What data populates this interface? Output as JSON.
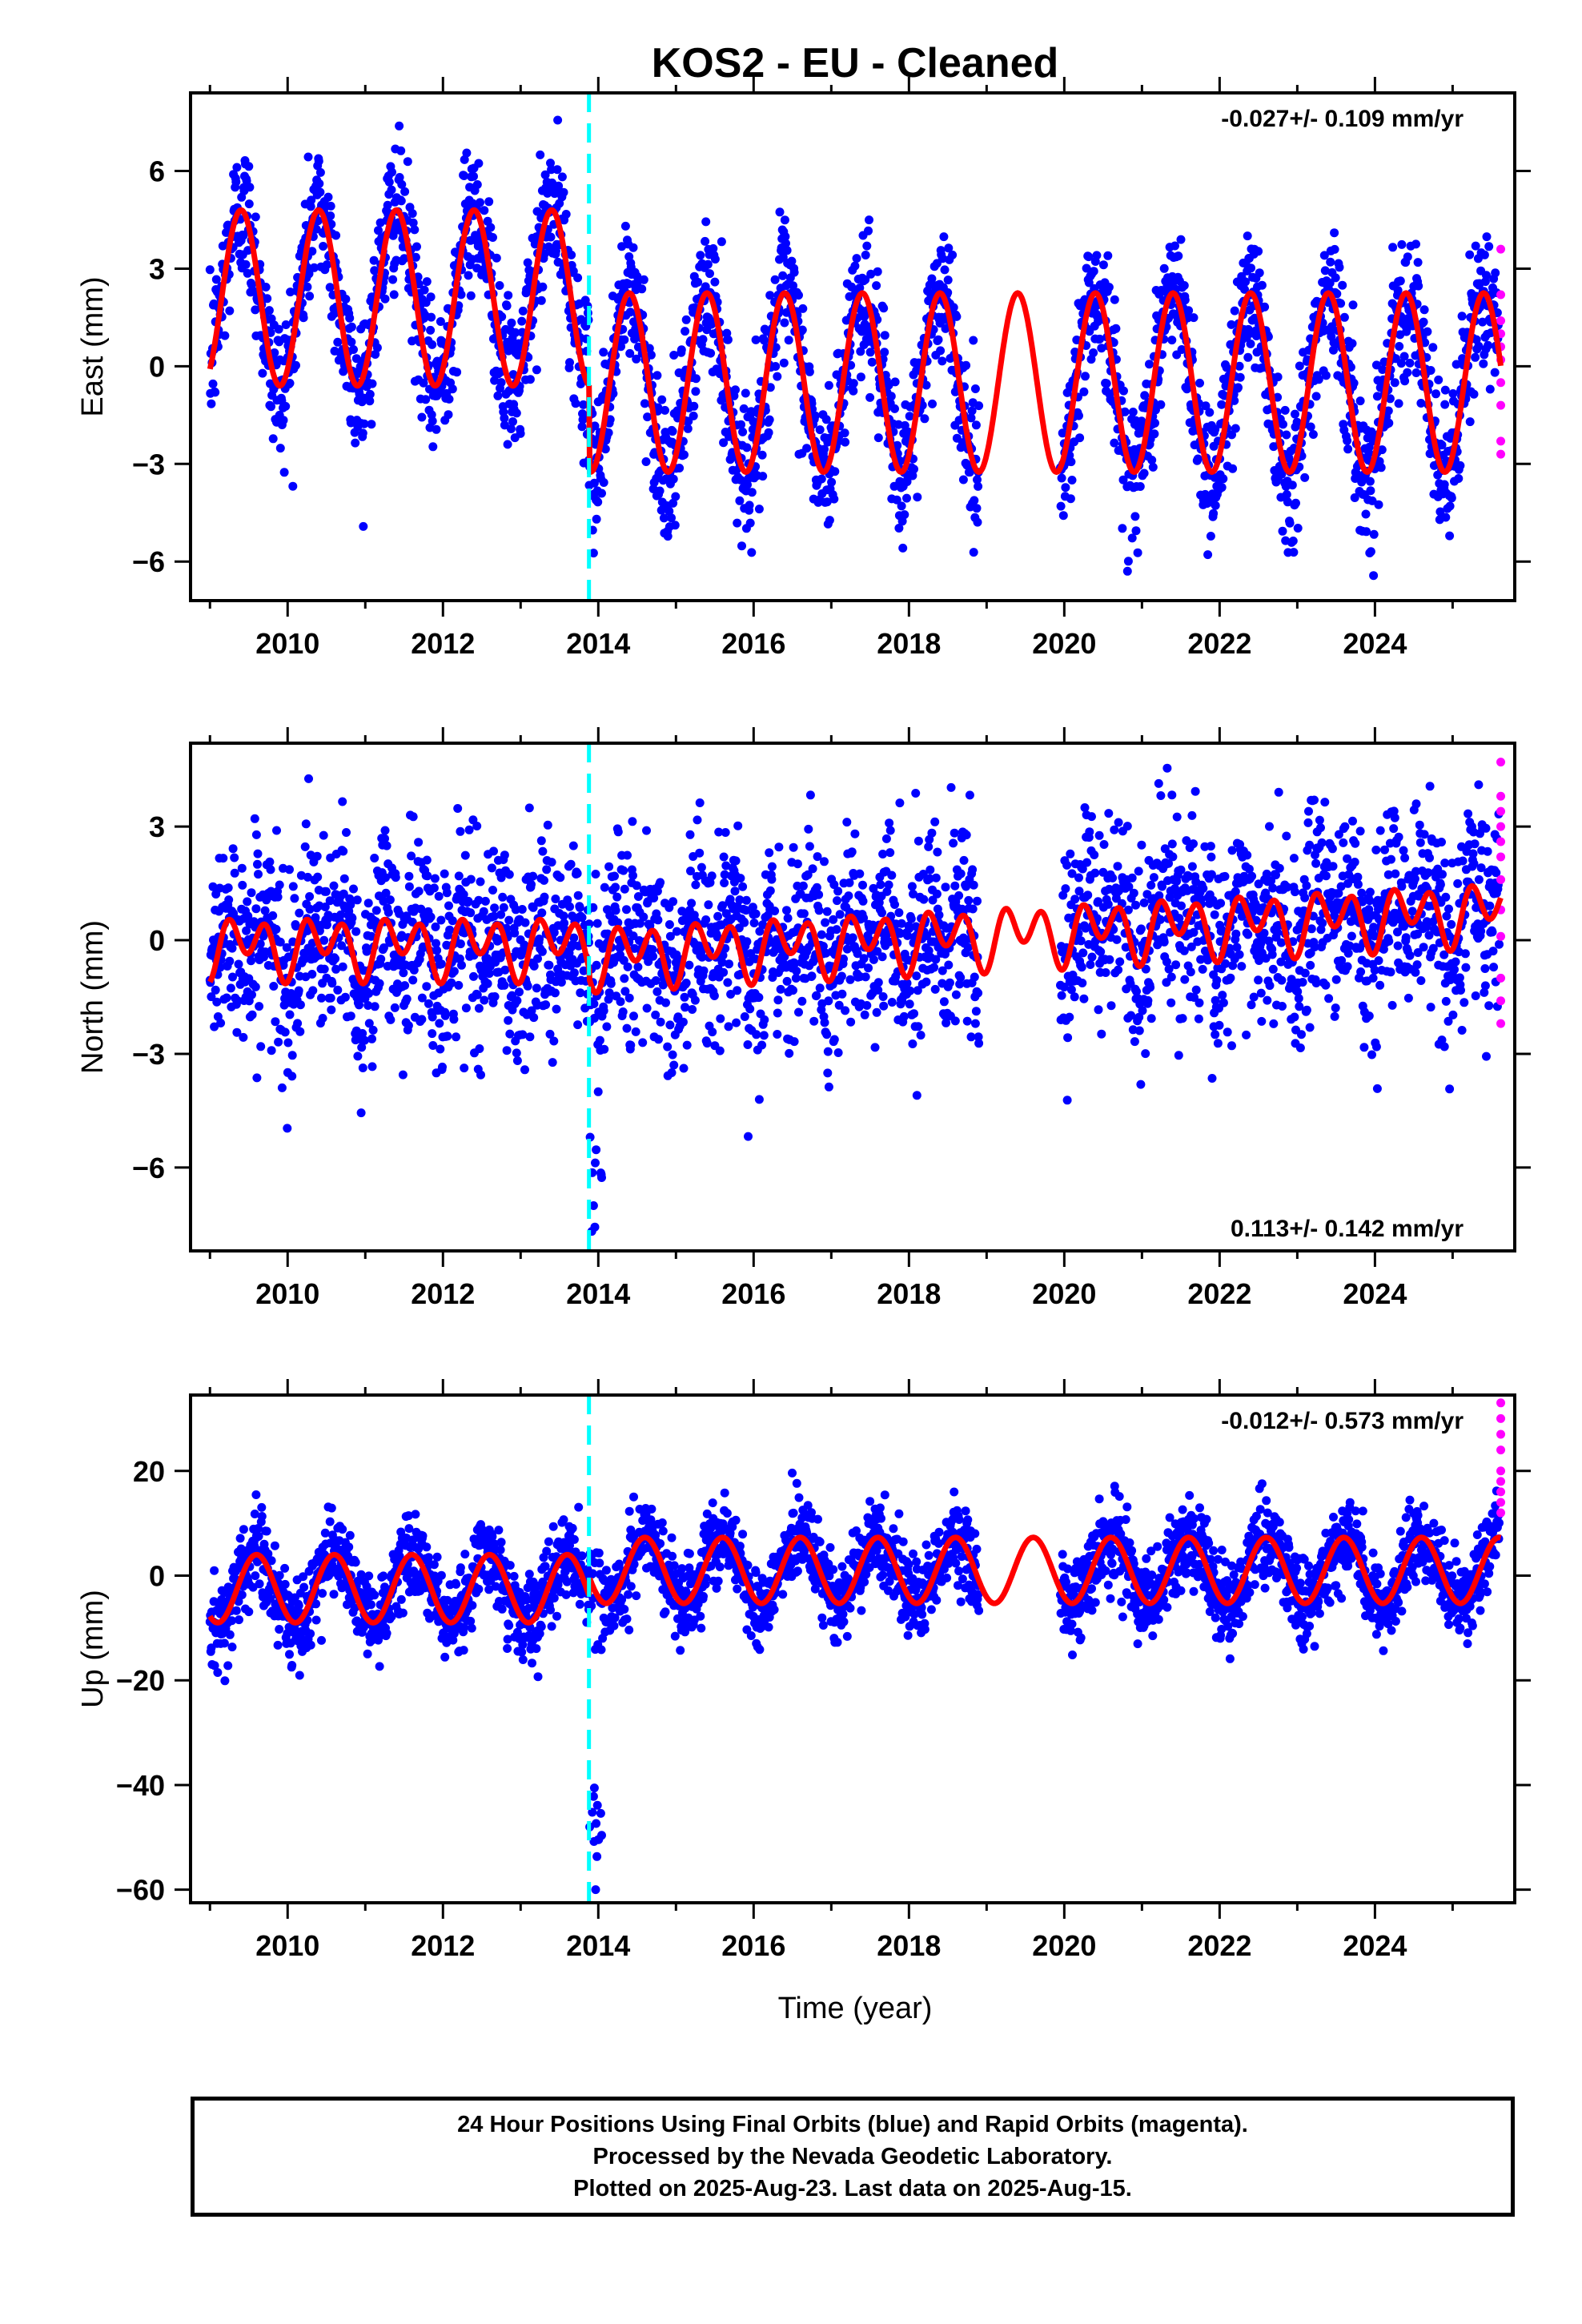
{
  "title": "KOS2  - EU - Cleaned",
  "xlabel": "Time (year)",
  "footer": {
    "line1": "24 Hour Positions Using Final Orbits (blue) and Rapid Orbits (magenta).",
    "line2": "Processed by the Nevada Geodetic Laboratory.",
    "line3": "Plotted on 2025-Aug-23. Last data on 2025-Aug-15."
  },
  "colors": {
    "final_orbits": "#0000ff",
    "rapid_orbits": "#ff00ff",
    "model": "#ff0000",
    "event_line": "#00ffff"
  },
  "chart_data": [
    {
      "type": "scatter",
      "name": "east",
      "ylabel": "East (mm)",
      "rate_label": "-0.027+/- 0.109 mm/yr",
      "rate_position": "top-right",
      "xlim": [
        2008.75,
        2025.8
      ],
      "ylim": [
        -7.2,
        8.4
      ],
      "yticks": [
        -6,
        -3,
        0,
        3,
        6
      ],
      "xticks": [
        2010,
        2012,
        2014,
        2016,
        2018,
        2020,
        2022,
        2024
      ],
      "event_line_x": 2013.88,
      "data_gap": [
        2018.9,
        2019.95
      ],
      "model_segments": [
        {
          "x": [
            2009.0,
            2013.88
          ],
          "offset": 2.1,
          "annual_amplitude": 2.7
        },
        {
          "x": [
            2013.88,
            2025.62
          ],
          "offset": -0.5,
          "annual_amplitude": 2.75
        }
      ],
      "model_peak_phase": 0.4,
      "scatter_std": 1.1,
      "rapid_orbit_values": [
        3.6,
        2.2,
        1.4,
        1.0,
        0.6,
        0.2,
        -0.5,
        -1.2,
        -2.3,
        -2.7
      ]
    },
    {
      "type": "scatter",
      "name": "north",
      "ylabel": "North (mm)",
      "rate_label": "0.113+/- 0.142 mm/yr",
      "rate_position": "bottom-right",
      "xlim": [
        2008.75,
        2025.8
      ],
      "ylim": [
        -8.2,
        5.2
      ],
      "yticks": [
        -6,
        -3,
        0,
        3
      ],
      "xticks": [
        2010,
        2012,
        2014,
        2016,
        2018,
        2020,
        2022,
        2024
      ],
      "event_line_x": 2013.88,
      "data_gap": [
        2018.9,
        2019.95
      ],
      "model_segments": [
        {
          "x": [
            2009.0,
            2013.88
          ],
          "offset": -0.15,
          "annual_amplitude": 0.4,
          "semiannual_amplitude": 0.6
        },
        {
          "x": [
            2013.88,
            2025.62
          ],
          "offset": -0.4,
          "annual_amplitude": 0.4,
          "semiannual_amplitude": 0.6,
          "trend_per_year": 0.1
        }
      ],
      "model_peak_phase": 0.45,
      "scatter_std": 1.3,
      "rapid_orbit_values": [
        4.7,
        3.8,
        3.4,
        3.0,
        2.6,
        2.2,
        1.6,
        0.8,
        0.1,
        -1.0,
        -1.6,
        -2.2
      ]
    },
    {
      "type": "scatter",
      "name": "up",
      "ylabel": "Up (mm)",
      "rate_label": "-0.012+/- 0.573 mm/yr",
      "rate_position": "top-right",
      "xlim": [
        2008.75,
        2025.8
      ],
      "ylim": [
        -62.5,
        34.5
      ],
      "yticks": [
        -60,
        -40,
        -20,
        0,
        20
      ],
      "xticks": [
        2010,
        2012,
        2014,
        2016,
        2018,
        2020,
        2022,
        2024
      ],
      "event_line_x": 2013.88,
      "data_gap": [
        2018.9,
        2019.95
      ],
      "model_segments": [
        {
          "x": [
            2009.0,
            2013.88
          ],
          "offset": -2.5,
          "annual_amplitude": 6.5
        },
        {
          "x": [
            2013.88,
            2025.62
          ],
          "offset": 1.0,
          "annual_amplitude": 6.3
        }
      ],
      "model_peak_phase": 0.6,
      "scatter_std": 4.0,
      "rapid_orbit_values": [
        33,
        30,
        27,
        24,
        20,
        18,
        16,
        14,
        12
      ]
    }
  ]
}
